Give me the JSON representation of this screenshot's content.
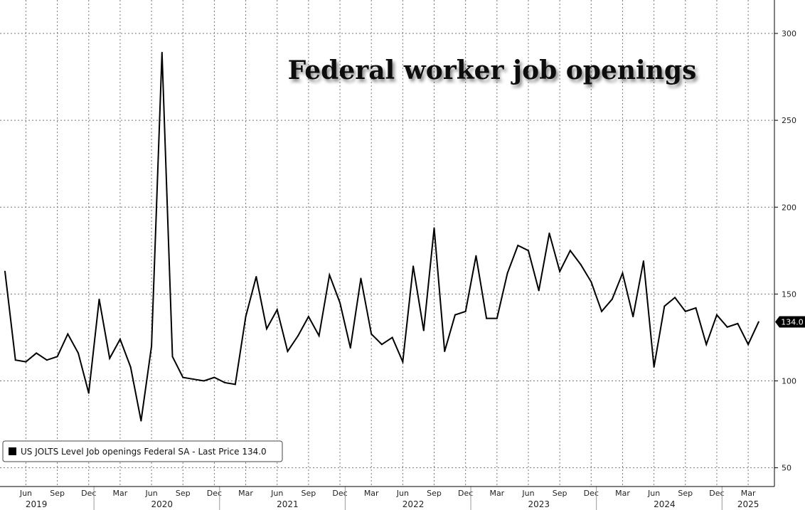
{
  "chart_data": {
    "type": "line",
    "title": "Federal worker job openings",
    "xlabel": "",
    "ylabel": "",
    "ylim": [
      40,
      320
    ],
    "yticks": [
      50,
      100,
      150,
      200,
      250,
      300
    ],
    "y_axis_position": "right",
    "grid": true,
    "legend": {
      "text": "US JOLTS Level Job openings Federal SA - Last Price 134.0",
      "position": "bottom-left"
    },
    "last_value_label": "134.0",
    "series": [
      {
        "name": "US JOLTS Level Job openings Federal SA",
        "color": "#000000",
        "x": [
          "2019-04",
          "2019-05",
          "2019-06",
          "2019-07",
          "2019-08",
          "2019-09",
          "2019-10",
          "2019-11",
          "2019-12",
          "2020-01",
          "2020-02",
          "2020-03",
          "2020-04",
          "2020-05",
          "2020-06",
          "2020-07",
          "2020-08",
          "2020-09",
          "2020-10",
          "2020-11",
          "2020-12",
          "2021-01",
          "2021-02",
          "2021-03",
          "2021-04",
          "2021-05",
          "2021-06",
          "2021-07",
          "2021-08",
          "2021-09",
          "2021-10",
          "2021-11",
          "2021-12",
          "2022-01",
          "2022-02",
          "2022-03",
          "2022-04",
          "2022-05",
          "2022-06",
          "2022-07",
          "2022-08",
          "2022-09",
          "2022-10",
          "2022-11",
          "2022-12",
          "2023-01",
          "2023-02",
          "2023-03",
          "2023-04",
          "2023-05",
          "2023-06",
          "2023-07",
          "2023-08",
          "2023-09",
          "2023-10",
          "2023-11",
          "2023-12",
          "2024-01",
          "2024-02",
          "2024-03",
          "2024-04",
          "2024-05",
          "2024-06",
          "2024-07",
          "2024-08",
          "2024-09",
          "2024-10",
          "2024-11",
          "2024-12",
          "2025-01",
          "2025-02",
          "2025-03",
          "2025-04"
        ],
        "values": [
          163,
          112,
          111,
          116,
          112,
          114,
          127,
          116,
          93,
          147,
          113,
          124,
          108,
          77,
          120,
          289,
          114,
          102,
          101,
          100,
          102,
          99,
          98,
          137,
          160,
          130,
          141,
          117,
          126,
          137,
          126,
          161,
          145,
          119,
          159,
          127,
          121,
          125,
          111,
          166,
          129,
          188,
          117,
          138,
          140,
          172,
          136,
          136,
          162,
          178,
          175,
          152,
          185,
          163,
          175,
          167,
          157,
          140,
          147,
          162,
          137,
          169,
          108,
          143,
          148,
          140,
          142,
          121,
          138,
          131,
          133,
          121,
          134
        ]
      }
    ],
    "x_month_ticks": [
      {
        "date": "2019-06",
        "label": "Jun"
      },
      {
        "date": "2019-09",
        "label": "Sep"
      },
      {
        "date": "2019-12",
        "label": "Dec"
      },
      {
        "date": "2020-03",
        "label": "Mar"
      },
      {
        "date": "2020-06",
        "label": "Jun"
      },
      {
        "date": "2020-09",
        "label": "Sep"
      },
      {
        "date": "2020-12",
        "label": "Dec"
      },
      {
        "date": "2021-03",
        "label": "Mar"
      },
      {
        "date": "2021-06",
        "label": "Jun"
      },
      {
        "date": "2021-09",
        "label": "Sep"
      },
      {
        "date": "2021-12",
        "label": "Dec"
      },
      {
        "date": "2022-03",
        "label": "Mar"
      },
      {
        "date": "2022-06",
        "label": "Jun"
      },
      {
        "date": "2022-09",
        "label": "Sep"
      },
      {
        "date": "2022-12",
        "label": "Dec"
      },
      {
        "date": "2023-03",
        "label": "Mar"
      },
      {
        "date": "2023-06",
        "label": "Jun"
      },
      {
        "date": "2023-09",
        "label": "Sep"
      },
      {
        "date": "2023-12",
        "label": "Dec"
      },
      {
        "date": "2024-03",
        "label": "Mar"
      },
      {
        "date": "2024-06",
        "label": "Jun"
      },
      {
        "date": "2024-09",
        "label": "Sep"
      },
      {
        "date": "2024-12",
        "label": "Dec"
      },
      {
        "date": "2025-03",
        "label": "Mar"
      }
    ],
    "x_year_labels": [
      {
        "date": "2019-07",
        "label": "2019"
      },
      {
        "date": "2020-07",
        "label": "2020"
      },
      {
        "date": "2021-07",
        "label": "2021"
      },
      {
        "date": "2022-07",
        "label": "2022"
      },
      {
        "date": "2023-07",
        "label": "2023"
      },
      {
        "date": "2024-07",
        "label": "2024"
      },
      {
        "date": "2025-03",
        "label": "2025"
      }
    ]
  }
}
